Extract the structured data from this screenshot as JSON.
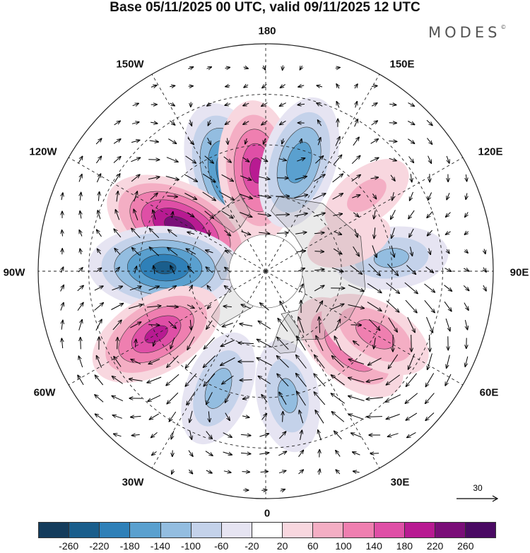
{
  "title": "Base 05/11/2025 00 UTC, valid 09/11/2025 12 UTC",
  "brand": {
    "name": "MODES",
    "mark": "©"
  },
  "longitude_labels": [
    "180",
    "150E",
    "120E",
    "90E",
    "60E",
    "30E",
    "0",
    "30W",
    "60W",
    "90W",
    "120W",
    "150W"
  ],
  "reference_vector": {
    "value": "30"
  },
  "colorbar": {
    "ticks": [
      "-260",
      "-220",
      "-180",
      "-140",
      "-100",
      "-60",
      "-20",
      "20",
      "60",
      "100",
      "140",
      "180",
      "220",
      "260"
    ],
    "colors": [
      "#143c5c",
      "#1a5e8c",
      "#2f80b8",
      "#5aa0cf",
      "#93bde0",
      "#c4d2ea",
      "#e6e4f2",
      "#ffffff",
      "#f8d7df",
      "#f4aec4",
      "#ef7fb0",
      "#df4fa6",
      "#b81a92",
      "#7a0e78",
      "#4a0a63"
    ]
  },
  "anomaly_centers": [
    {
      "label": "neg-150W",
      "lon": -160,
      "lat": 50,
      "value": -230
    },
    {
      "label": "pos-160W-a",
      "lon": -175,
      "lat": 50,
      "value": 190
    },
    {
      "label": "neg-170E",
      "lon": 163,
      "lat": 45,
      "value": -170
    },
    {
      "label": "pos-115W",
      "lon": -117,
      "lat": 52,
      "value": 250
    },
    {
      "label": "neg-90W",
      "lon": -92,
      "lat": 50,
      "value": -230
    },
    {
      "label": "pos-60W",
      "lon": -60,
      "lat": 40,
      "value": 190
    },
    {
      "label": "neg-25W",
      "lon": -22,
      "lat": 40,
      "value": -120
    },
    {
      "label": "neg-10E",
      "lon": 10,
      "lat": 40,
      "value": -110
    },
    {
      "label": "pos-45E",
      "lon": 48,
      "lat": 45,
      "value": 150
    },
    {
      "label": "pos-60E",
      "lon": 60,
      "lat": 40,
      "value": 120
    },
    {
      "label": "neg-95E",
      "lon": 96,
      "lat": 40,
      "value": -110
    },
    {
      "label": "pos-120E",
      "lon": 127,
      "lat": 40,
      "value": 70
    },
    {
      "label": "pos-110E-b",
      "lon": 110,
      "lat": 55,
      "value": 50
    }
  ]
}
